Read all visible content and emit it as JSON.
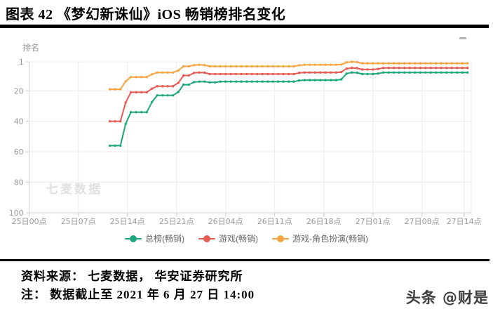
{
  "header": {
    "title": "图表 42  《梦幻新诛仙》iOS 畅销榜排名变化"
  },
  "chart_data": {
    "type": "line",
    "title": "",
    "ylabel": "排名",
    "watermark": "七麦数据",
    "y_inverted": true,
    "y_ticks": [
      1,
      20,
      40,
      60,
      80,
      100
    ],
    "ylim": [
      1,
      100
    ],
    "x_unit": "hours since 25日00点",
    "x_range_hours": [
      0,
      63
    ],
    "x_tick_hours": [
      0,
      7,
      14,
      21,
      28,
      35,
      42,
      49,
      56,
      62
    ],
    "x_tick_labels": [
      "25日00点",
      "25日07点",
      "25日14点",
      "25日21点",
      "26日04点",
      "26日11点",
      "26日18点",
      "27日01点",
      "27日08点",
      "27日14点"
    ],
    "grid": true,
    "legend_position": "bottom",
    "marker_interval_hours": 0.75,
    "series": [
      {
        "name": "总榜(畅销)",
        "color": "#1ea77c",
        "points": [
          [
            11.5,
            56
          ],
          [
            13.1,
            56
          ],
          [
            14.1,
            34
          ],
          [
            16.9,
            34
          ],
          [
            17.9,
            23
          ],
          [
            21.0,
            23
          ],
          [
            21.8,
            16
          ],
          [
            22.9,
            16
          ],
          [
            23.6,
            14
          ],
          [
            25.4,
            14
          ],
          [
            26.1,
            15
          ],
          [
            26.9,
            14
          ],
          [
            37.9,
            14
          ],
          [
            38.7,
            13
          ],
          [
            44.4,
            13
          ],
          [
            45.4,
            8
          ],
          [
            46.6,
            8
          ],
          [
            47.4,
            9
          ],
          [
            49.5,
            9
          ],
          [
            50.3,
            8
          ],
          [
            62.5,
            8
          ]
        ]
      },
      {
        "name": "游戏(畅销)",
        "color": "#e75a52",
        "points": [
          [
            11.5,
            40
          ],
          [
            13.1,
            40
          ],
          [
            14.1,
            21
          ],
          [
            16.9,
            21
          ],
          [
            17.9,
            17
          ],
          [
            21.0,
            17
          ],
          [
            21.8,
            10
          ],
          [
            22.9,
            10
          ],
          [
            23.6,
            8
          ],
          [
            24.9,
            8
          ],
          [
            25.6,
            9
          ],
          [
            37.9,
            9
          ],
          [
            38.7,
            8
          ],
          [
            44.4,
            8
          ],
          [
            45.4,
            5
          ],
          [
            46.6,
            5
          ],
          [
            47.4,
            6
          ],
          [
            49.5,
            6
          ],
          [
            50.3,
            5
          ],
          [
            62.5,
            5
          ]
        ]
      },
      {
        "name": "游戏-角色扮演(畅销)",
        "color": "#f7a543",
        "points": [
          [
            11.5,
            19
          ],
          [
            13.1,
            19
          ],
          [
            14.1,
            11
          ],
          [
            16.9,
            11
          ],
          [
            17.9,
            8
          ],
          [
            21.0,
            8
          ],
          [
            21.8,
            4
          ],
          [
            22.9,
            4
          ],
          [
            23.6,
            3
          ],
          [
            24.9,
            3
          ],
          [
            25.6,
            4
          ],
          [
            37.9,
            4
          ],
          [
            38.7,
            3
          ],
          [
            44.4,
            3
          ],
          [
            45.4,
            1
          ],
          [
            46.6,
            1
          ],
          [
            47.4,
            2
          ],
          [
            62.5,
            2
          ]
        ]
      }
    ],
    "colors": {
      "grid_line": "#ececec",
      "axis_line": "#cccccc",
      "tick_label": "#999999",
      "legend_text": "#666666"
    }
  },
  "footer": {
    "source": "资料来源： 七麦数据， 华安证券研究所",
    "note": "注： 数据截止至 2021 年 6 月 27 日 14:00"
  },
  "badge": {
    "text": "头条 @财是"
  }
}
